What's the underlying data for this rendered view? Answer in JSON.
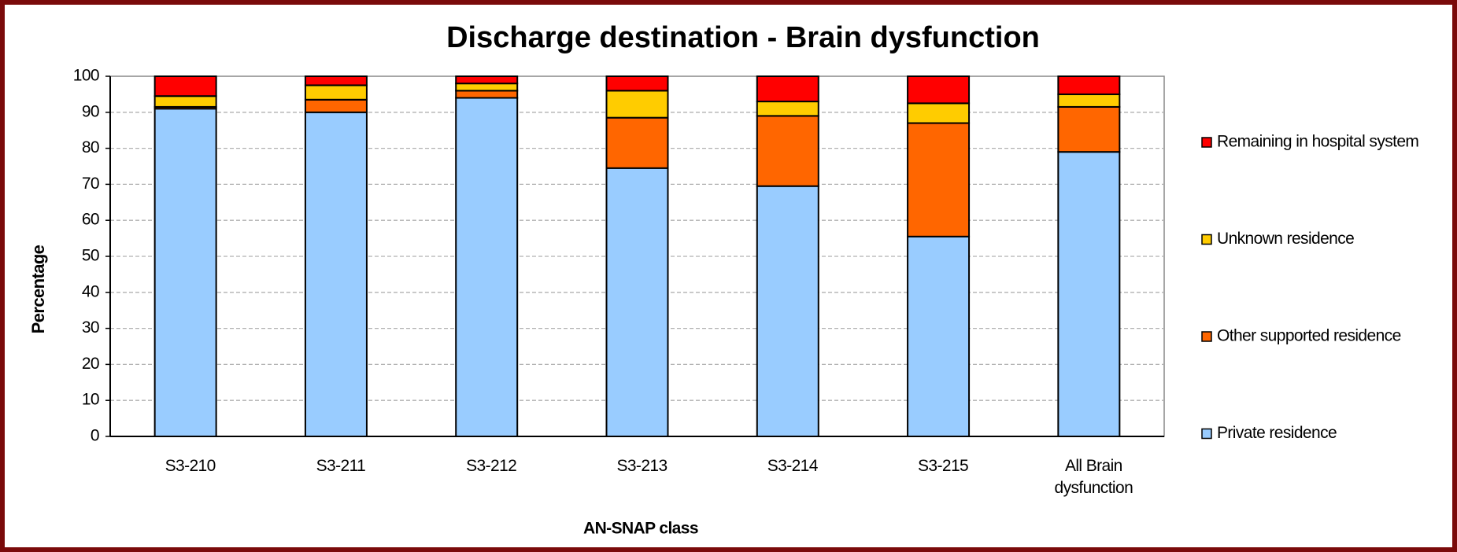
{
  "chart_data": {
    "type": "stacked_bar",
    "title": "Discharge destination - Brain dysfunction",
    "x_label": "AN-SNAP class",
    "y_label": "Percentage",
    "categories": [
      "S3-210",
      "S3-211",
      "S3-212",
      "S3-213",
      "S3-214",
      "S3-215",
      "All Brain dysfunction"
    ],
    "series": [
      {
        "name": "Private residence",
        "color": "#99ccff",
        "values": [
          91,
          90,
          94,
          74.5,
          69.5,
          55.5,
          79
        ]
      },
      {
        "name": "Other supported residence",
        "color": "#ff6600",
        "values": [
          0.5,
          3.5,
          2,
          14,
          19.5,
          31.5,
          12.5
        ]
      },
      {
        "name": "Unknown residence",
        "color": "#ffcc00",
        "values": [
          3,
          4,
          2,
          7.5,
          4,
          5.5,
          3.5
        ]
      },
      {
        "name": "Remaining in hospital system",
        "color": "#ff0000",
        "values": [
          5.5,
          2.5,
          2,
          4,
          7,
          7.5,
          5
        ]
      }
    ],
    "ylim": [
      0,
      100
    ],
    "yticks": [
      0,
      10,
      20,
      30,
      40,
      50,
      60,
      70,
      80,
      90,
      100
    ],
    "grid": true,
    "legend": "right"
  }
}
